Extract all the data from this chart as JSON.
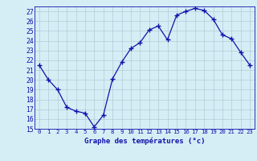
{
  "hours": [
    0,
    1,
    2,
    3,
    4,
    5,
    6,
    7,
    8,
    9,
    10,
    11,
    12,
    13,
    14,
    15,
    16,
    17,
    18,
    19,
    20,
    21,
    22,
    23
  ],
  "temps": [
    21.5,
    20.0,
    19.0,
    17.2,
    16.8,
    16.6,
    15.2,
    16.4,
    20.1,
    21.8,
    23.2,
    23.8,
    25.1,
    25.5,
    24.1,
    26.6,
    27.0,
    27.3,
    27.1,
    26.2,
    24.6,
    24.2,
    22.8,
    21.5
  ],
  "ylim_min": 15,
  "ylim_max": 27.5,
  "yticks": [
    15,
    16,
    17,
    18,
    19,
    20,
    21,
    22,
    23,
    24,
    25,
    26,
    27
  ],
  "xlabel": "Graphe des températures (°c)",
  "line_color": "#1111aa",
  "bg_color": "#d5eef5",
  "grid_color": "#b0ccd8",
  "tick_label_color": "#1111aa",
  "axis_label_color": "#1111aa",
  "xlim_min": -0.5,
  "xlim_max": 23.5
}
